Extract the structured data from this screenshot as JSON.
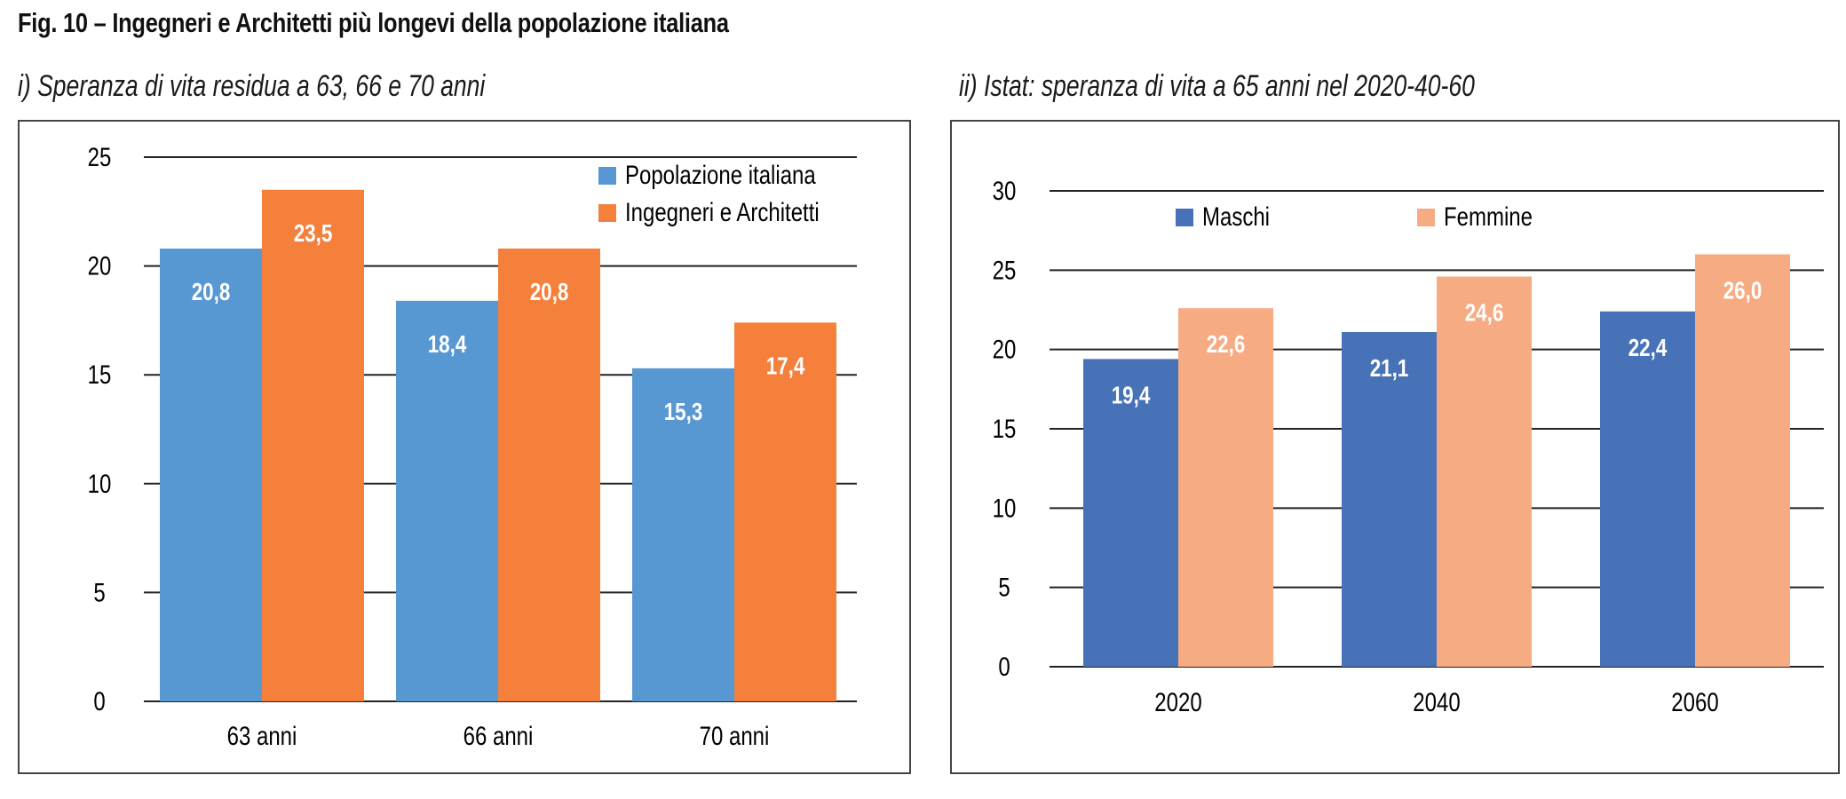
{
  "figure_title": "Fig. 10 – Ingegneri e Architetti più longevi della popolazione italiana",
  "colors": {
    "popolazione": "#5798d3",
    "ingegneri": "#f4803c",
    "maschi": "#4872b7",
    "femmine": "#f6ab83",
    "grid": "#222222",
    "value_label": "#ffffff"
  },
  "chart_data": [
    {
      "type": "bar",
      "title": "i) Speranza di vita residua a 63, 66 e 70 anni",
      "xlabel": "",
      "ylabel": "",
      "categories": [
        "63 anni",
        "66 anni",
        "70 anni"
      ],
      "series": [
        {
          "name": "Popolazione italiana",
          "values": [
            20.8,
            18.4,
            15.3
          ],
          "labels": [
            "20,8",
            "18,4",
            "15,3"
          ]
        },
        {
          "name": "Ingegneri e Architetti",
          "values": [
            23.5,
            20.8,
            17.4
          ],
          "labels": [
            "23,5",
            "20,8",
            "17,4"
          ]
        }
      ],
      "ylim": [
        0,
        25
      ],
      "yticks": [
        0,
        5,
        10,
        15,
        20,
        25
      ],
      "grid": true,
      "legend": "top-right"
    },
    {
      "type": "bar",
      "title": "ii) Istat: speranza di vita a 65 anni nel 2020-40-60",
      "xlabel": "",
      "ylabel": "",
      "categories": [
        "2020",
        "2040",
        "2060"
      ],
      "series": [
        {
          "name": "Maschi",
          "values": [
            19.4,
            21.1,
            22.4
          ],
          "labels": [
            "19,4",
            "21,1",
            "22,4"
          ]
        },
        {
          "name": "Femmine",
          "values": [
            22.6,
            24.6,
            26.0
          ],
          "labels": [
            "22,6",
            "24,6",
            "26,0"
          ]
        }
      ],
      "ylim": [
        0,
        30
      ],
      "yticks": [
        0,
        5,
        10,
        15,
        20,
        25,
        30
      ],
      "grid": true,
      "legend": "top"
    }
  ]
}
